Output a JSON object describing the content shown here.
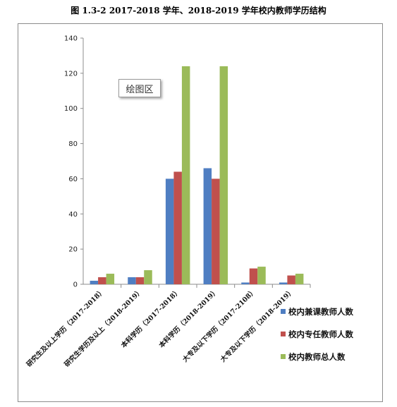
{
  "title": "图 1.3-2  2017-2018 学年、2018-2019 学年校内教师学历结构",
  "tooltip": "绘图区",
  "colors": {
    "series": [
      "#4f7ec2",
      "#c0504d",
      "#9bbb59"
    ],
    "axis": "#8c8c8c"
  },
  "chart_data": {
    "type": "bar",
    "title": "图 1.3-2  2017-2018 学年、2018-2019 学年校内教师学历结构",
    "categories": [
      "研究生及以上学历（2017-2018）",
      "研究生学历及以上（2018-2019）",
      "本科学历（2017-2018）",
      "本科学历（2018-2019）",
      "大专及以下学历（2017-2108）",
      "大专及以下学历（2018-2019）"
    ],
    "series": [
      {
        "name": "校内兼课教师人数",
        "values": [
          2,
          4,
          60,
          66,
          1,
          1
        ]
      },
      {
        "name": "校内专任教师人数",
        "values": [
          4,
          4,
          64,
          60,
          9,
          5
        ]
      },
      {
        "name": "校内教师总人数",
        "values": [
          6,
          8,
          124,
          124,
          10,
          6
        ]
      }
    ],
    "ylim": [
      0,
      140
    ],
    "yticks": [
      0,
      20,
      40,
      60,
      80,
      100,
      120,
      140
    ],
    "grid": false,
    "legend_position": "right"
  }
}
